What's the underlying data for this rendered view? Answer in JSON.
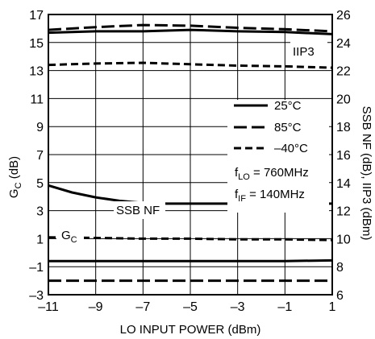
{
  "chart_data": {
    "type": "line",
    "xlabel": "LO INPUT POWER (dBm)",
    "ylabel_left": "G",
    "ylabel_left_sub": "C",
    "ylabel_left_unit": " (dB)",
    "ylabel_right": "SSB NF (dB), IIP3 (dBm)",
    "xlim": [
      -11,
      1
    ],
    "ylim_left": [
      -3,
      17
    ],
    "ylim_right": [
      6,
      26
    ],
    "x_ticks": [
      "–11",
      "–9",
      "–7",
      "–5",
      "–3",
      "–1",
      "1"
    ],
    "y_left_ticks": [
      "–3",
      "–1",
      "1",
      "3",
      "5",
      "7",
      "9",
      "11",
      "13",
      "15",
      "17"
    ],
    "y_right_ticks": [
      "6",
      "8",
      "10",
      "12",
      "14",
      "16",
      "18",
      "20",
      "22",
      "24",
      "26"
    ],
    "grid": true,
    "legend": {
      "position": "right-middle",
      "entries": [
        {
          "label": "25°C",
          "style": "solid"
        },
        {
          "label": "85°C",
          "style": "long-dash"
        },
        {
          "label": "–40°C",
          "style": "short-dash"
        }
      ]
    },
    "annotations": {
      "flo_main": "f",
      "flo_sub": "LO",
      "flo_value": " = 760MHz",
      "fif_main": "f",
      "fif_sub": "IF",
      "fif_value": " = 140MHz",
      "iip3": "IIP3",
      "ssbnf": "SSB NF",
      "gc_main": "G",
      "gc_sub": "C"
    },
    "series": [
      {
        "quantity": "IIP3",
        "axis": "right",
        "style": "solid",
        "x": [
          -11,
          -9,
          -7,
          -5,
          -3,
          -1,
          1
        ],
        "y": [
          24.7,
          24.8,
          24.8,
          24.9,
          24.8,
          24.75,
          24.6
        ]
      },
      {
        "quantity": "IIP3",
        "axis": "right",
        "style": "long-dash",
        "x": [
          -11,
          -9,
          -7,
          -5,
          -3,
          -1,
          1
        ],
        "y": [
          24.9,
          25.1,
          25.25,
          25.2,
          25.05,
          24.95,
          24.8
        ]
      },
      {
        "quantity": "IIP3",
        "axis": "right",
        "style": "short-dash",
        "x": [
          -11,
          -9,
          -7,
          -5,
          -3,
          -1,
          1
        ],
        "y": [
          22.4,
          22.5,
          22.55,
          22.45,
          22.35,
          22.3,
          22.2
        ]
      },
      {
        "quantity": "SSB NF",
        "axis": "right",
        "style": "solid",
        "x": [
          -11,
          -10,
          -9,
          -8,
          -7,
          -6,
          -5,
          -3,
          -1,
          1
        ],
        "y": [
          13.8,
          13.3,
          12.95,
          12.7,
          12.55,
          12.5,
          12.5,
          12.5,
          12.5,
          12.5
        ]
      },
      {
        "quantity": "GC",
        "axis": "left",
        "style": "short-dash",
        "x": [
          -11,
          -9,
          -7,
          -5,
          -3,
          -1,
          1
        ],
        "y": [
          1.1,
          1.05,
          1.0,
          1.0,
          0.95,
          0.95,
          0.9
        ]
      },
      {
        "quantity": "GC",
        "axis": "left",
        "style": "solid",
        "x": [
          -11,
          -9,
          -7,
          -5,
          -3,
          -1,
          1
        ],
        "y": [
          -0.6,
          -0.6,
          -0.6,
          -0.6,
          -0.6,
          -0.6,
          -0.55
        ]
      },
      {
        "quantity": "GC",
        "axis": "left",
        "style": "long-dash",
        "x": [
          -11,
          -9,
          -7,
          -5,
          -3,
          -1,
          1
        ],
        "y": [
          -2.0,
          -2.0,
          -2.0,
          -2.0,
          -2.0,
          -2.0,
          -2.0
        ]
      }
    ]
  }
}
